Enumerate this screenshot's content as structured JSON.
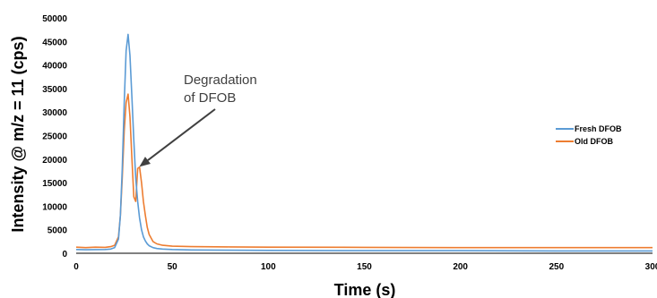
{
  "chart_data": {
    "type": "line",
    "xlabel": "Time (s)",
    "ylabel": "Intensity @ m/z = 11 (cps)",
    "xlim": [
      0,
      300
    ],
    "ylim": [
      0,
      50000
    ],
    "x_ticks": [
      0,
      50,
      100,
      150,
      200,
      250,
      300
    ],
    "y_ticks": [
      0,
      5000,
      10000,
      15000,
      20000,
      25000,
      30000,
      35000,
      40000,
      45000,
      50000
    ],
    "grid": false,
    "legend_position": "right",
    "annotation": {
      "text_lines": [
        "Degradation",
        "of DFOB"
      ],
      "points_to": [
        31,
        18000
      ]
    },
    "series": [
      {
        "name": "Fresh DFOB",
        "color": "#5B9BD5",
        "x": [
          0,
          5,
          10,
          15,
          18,
          20,
          22,
          23,
          24,
          25,
          26,
          27,
          28,
          29,
          30,
          31,
          32,
          33,
          34,
          35,
          36,
          37,
          38,
          40,
          42,
          45,
          50,
          60,
          80,
          100,
          150,
          200,
          250,
          300
        ],
        "y": [
          800,
          750,
          780,
          800,
          900,
          1200,
          3000,
          8000,
          18000,
          32000,
          43000,
          46500,
          42000,
          33000,
          24000,
          16000,
          11000,
          7500,
          5000,
          3500,
          2600,
          2000,
          1600,
          1200,
          1000,
          900,
          800,
          700,
          650,
          600,
          550,
          550,
          500,
          500
        ]
      },
      {
        "name": "Old DFOB",
        "color": "#ED7D31",
        "x": [
          0,
          5,
          10,
          15,
          18,
          20,
          22,
          23,
          24,
          25,
          26,
          27,
          28,
          29,
          30,
          31,
          32,
          33,
          34,
          35,
          36,
          37,
          38,
          40,
          42,
          45,
          50,
          60,
          80,
          100,
          150,
          200,
          250,
          300
        ],
        "y": [
          1300,
          1200,
          1300,
          1250,
          1400,
          1700,
          3500,
          8000,
          16000,
          26000,
          32000,
          33800,
          29000,
          20000,
          12000,
          11000,
          18000,
          18300,
          15000,
          11000,
          8000,
          5500,
          4000,
          2500,
          2000,
          1700,
          1500,
          1400,
          1350,
          1300,
          1250,
          1200,
          1200,
          1200
        ]
      }
    ]
  }
}
